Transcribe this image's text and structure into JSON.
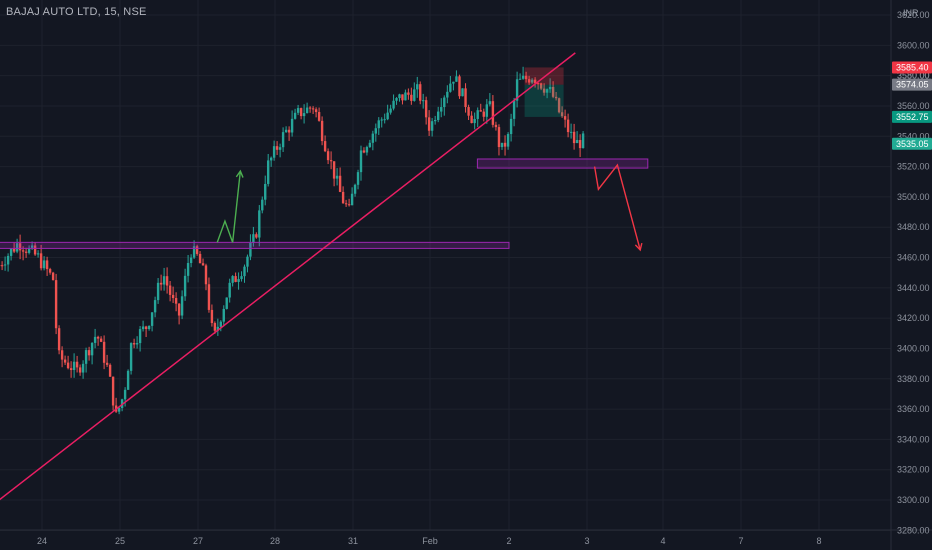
{
  "header": {
    "symbol": "BAJAJ AUTO LTD, 15, NSE"
  },
  "axis": {
    "currency": "INR"
  },
  "colors": {
    "background": "#131722",
    "up": "#26a69a",
    "down": "#ef5350",
    "trendline": "#e91e63",
    "zone": "#9c27b0",
    "arrow_up": "#4caf50",
    "arrow_down": "#f23645",
    "badge_red": "#f23645",
    "badge_gray": "#787b86",
    "badge_green": "#089981",
    "badge_teal": "#22ab94"
  },
  "chart_data": {
    "type": "candlestick",
    "ylim": [
      3270,
      3630
    ],
    "y_ticks": [
      3280,
      3300,
      3320,
      3340,
      3360,
      3380,
      3400,
      3420,
      3440,
      3460,
      3480,
      3500,
      3520,
      3540,
      3560,
      3580,
      3600,
      3620
    ],
    "y_tick_labels": [
      "3280.00",
      "3300.00",
      "3320.00",
      "3340.00",
      "3360.00",
      "3380.00",
      "3400.00",
      "3420.00",
      "3440.00",
      "3460.00",
      "3480.00",
      "3500.00",
      "3520.00",
      "3540.00",
      "3560.00",
      "3580.00",
      "3600.00",
      "3620.00"
    ],
    "x_labels": [
      "24",
      "25",
      "27",
      "28",
      "31",
      "Feb",
      "2",
      "3",
      "4",
      "7",
      "8"
    ],
    "price_badges": [
      {
        "label": "3585.40",
        "value": 3585.4,
        "color": "#f23645"
      },
      {
        "label": "3574.05",
        "value": 3574.05,
        "color": "#787b86"
      },
      {
        "label": "3552.75",
        "value": 3552.75,
        "color": "#089981"
      },
      {
        "label": "3535.05",
        "value": 3535.05,
        "color": "#22ab94"
      }
    ],
    "partial_tick_label": "3580.00",
    "session_anchors": [
      {
        "label": "24",
        "x_day": 0,
        "open": 3448,
        "close": 3462,
        "high": 3472,
        "low": 3440
      },
      {
        "label": "25",
        "x_day": 1,
        "open": 3395,
        "close": 3415,
        "high": 3440,
        "low": 3330
      },
      {
        "label": "27",
        "x_day": 2,
        "open": 3455,
        "close": 3450,
        "high": 3475,
        "low": 3395
      },
      {
        "label": "28",
        "x_day": 3,
        "open": 3520,
        "close": 3555,
        "high": 3565,
        "low": 3500
      },
      {
        "label": "31",
        "x_day": 4,
        "open": 3495,
        "close": 3545,
        "high": 3560,
        "low": 3485
      },
      {
        "label": "Feb",
        "x_day": 5,
        "open": 3560,
        "close": 3565,
        "high": 3598,
        "low": 3540
      },
      {
        "label": "2",
        "x_day": 6,
        "open": 3575,
        "close": 3535,
        "high": 3590,
        "low": 3520
      }
    ],
    "drawings": {
      "rising_trendline": {
        "from": {
          "x_day": -0.55,
          "price": 3300
        },
        "to": {
          "x_day": 6.85,
          "price": 3595
        }
      },
      "support_zone_lower": {
        "x_day_from": -0.55,
        "x_day_to": 6.0,
        "price_top": 3470,
        "price_bottom": 3466
      },
      "support_zone_upper": {
        "x_day_from": 5.6,
        "x_day_to": 7.8,
        "price_top": 3525,
        "price_bottom": 3519
      },
      "short_position": {
        "x_day_from": 6.2,
        "x_day_to": 6.7,
        "entry": 3574,
        "stop": 3585.4,
        "target": 3552.75
      },
      "up_arrow": [
        {
          "x_day": 2.25,
          "price": 3470
        },
        {
          "x_day": 2.35,
          "price": 3484
        },
        {
          "x_day": 2.45,
          "price": 3470
        },
        {
          "x_day": 2.55,
          "price": 3517
        }
      ],
      "down_arrow": [
        {
          "x_day": 7.1,
          "price": 3520
        },
        {
          "x_day": 7.15,
          "price": 3505
        },
        {
          "x_day": 7.4,
          "price": 3521
        },
        {
          "x_day": 7.7,
          "price": 3465
        }
      ]
    }
  }
}
